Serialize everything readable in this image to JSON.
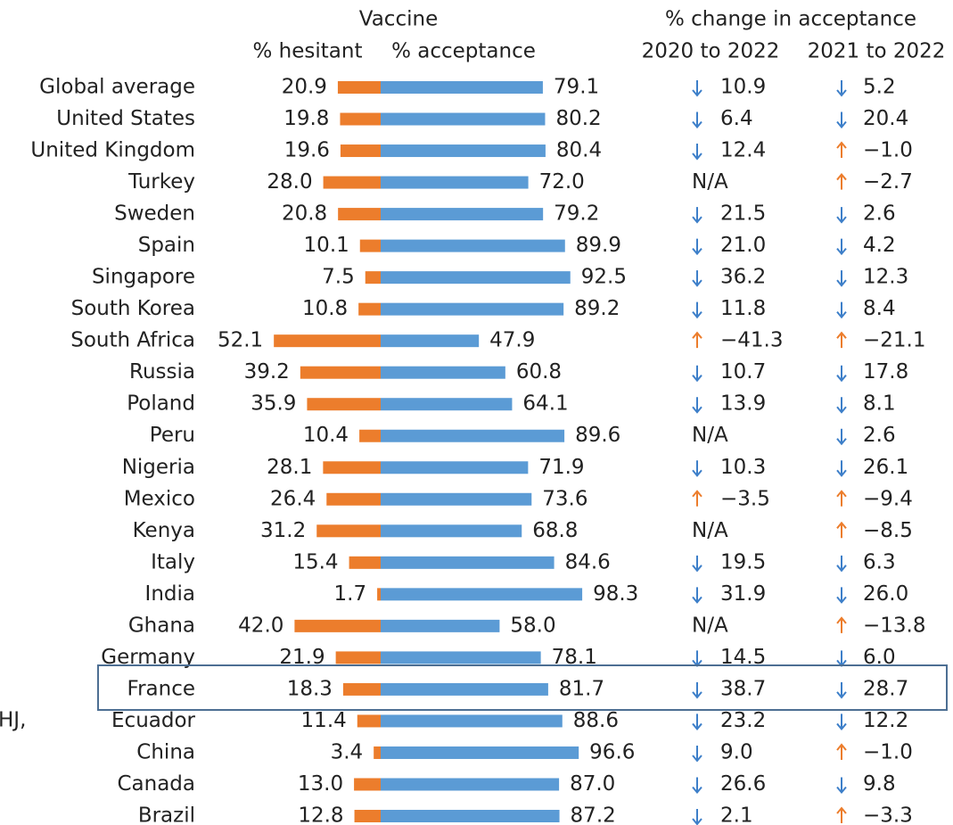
{
  "chart_data": {
    "type": "diverging_bar",
    "header": "Vaccine",
    "categories": [
      "Global average",
      "United States",
      "United Kingdom",
      "Turkey",
      "Sweden",
      "Spain",
      "Singapore",
      "South Korea",
      "South Africa",
      "Russia",
      "Poland",
      "Peru",
      "Nigeria",
      "Mexico",
      "Kenya",
      "Italy",
      "India",
      "Ghana",
      "Germany",
      "France",
      "Ecuador",
      "China",
      "Canada",
      "Brazil"
    ],
    "series": [
      {
        "name": "% hesitant",
        "color": "#ec7d2c",
        "values": [
          20.9,
          19.8,
          19.6,
          28.0,
          20.8,
          10.1,
          7.5,
          10.8,
          52.1,
          39.2,
          35.9,
          10.4,
          28.1,
          26.4,
          31.2,
          15.4,
          1.7,
          42.0,
          21.9,
          18.3,
          11.4,
          3.4,
          13.0,
          12.8
        ],
        "value_labels": [
          "20.9",
          "19.8",
          "19.6",
          "28.0",
          "20.8",
          "10.1",
          "7.5",
          "10.8",
          "52.1",
          "39.2",
          "35.9",
          "10.4",
          "28.1",
          "26.4",
          "31.2",
          "15.4",
          "1.7",
          "42.0",
          "21.9",
          "18.3",
          "11.4",
          "3.4",
          "13.0",
          "12.8"
        ]
      },
      {
        "name": "% acceptance",
        "color": "#5b9bd5",
        "values": [
          79.1,
          80.2,
          80.4,
          72.0,
          79.2,
          89.9,
          92.5,
          89.2,
          47.9,
          60.8,
          64.1,
          89.6,
          71.9,
          73.6,
          68.8,
          84.6,
          98.3,
          58.0,
          78.1,
          81.7,
          88.6,
          96.6,
          87.0,
          87.2
        ],
        "value_labels": [
          "79.1",
          "80.2",
          "80.4",
          "72.0",
          "79.2",
          "89.9",
          "92.5",
          "89.2",
          "47.9",
          "60.8",
          "64.1",
          "89.6",
          "71.9",
          "73.6",
          "68.8",
          "84.6",
          "98.3",
          "58.0",
          "78.1",
          "81.7",
          "88.6",
          "96.6",
          "87.0",
          "87.2"
        ]
      }
    ],
    "change_table": {
      "header": "% change in acceptance",
      "up_color": "#3d7fc9",
      "down_color": "#ec7d2c",
      "columns": [
        {
          "name": "2020 to 2022",
          "values": [
            "10.9",
            "6.4",
            "12.4",
            "N/A",
            "21.5",
            "21.0",
            "36.2",
            "11.8",
            "−41.3",
            "10.7",
            "13.9",
            "N/A",
            "10.3",
            "−3.5",
            "N/A",
            "19.5",
            "31.9",
            "N/A",
            "14.5",
            "38.7",
            "23.2",
            "9.0",
            "26.6",
            "2.1"
          ]
        },
        {
          "name": "2021 to 2022",
          "values": [
            "5.2",
            "20.4",
            "−1.0",
            "−2.7",
            "2.6",
            "4.2",
            "12.3",
            "8.4",
            "−21.1",
            "17.8",
            "8.1",
            "2.6",
            "26.1",
            "−9.4",
            "−8.5",
            "6.3",
            "26.0",
            "−13.8",
            "6.0",
            "28.7",
            "12.2",
            "−1.0",
            "9.8",
            "−3.3"
          ]
        }
      ]
    },
    "fragment": "HJ,"
  }
}
